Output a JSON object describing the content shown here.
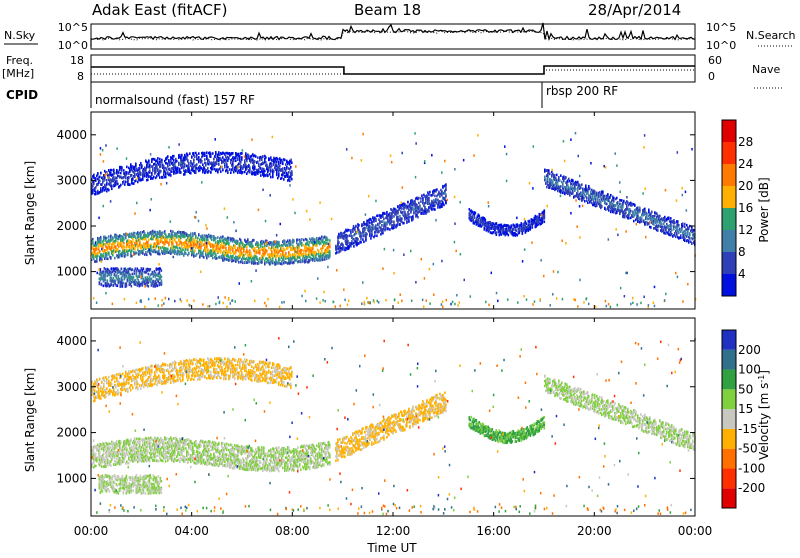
{
  "header": {
    "station": "Adak East (fitACF)",
    "beam": "Beam 18",
    "date": "28/Apr/2014"
  },
  "top_panels": {
    "nsky_label": "N.Sky",
    "nsky_ticks": [
      "10^5",
      "10^0"
    ],
    "nsearch_label": "N.Search",
    "nsearch_ticks": [
      "10^5",
      "10^0"
    ],
    "freq_label_1": "Freq.",
    "freq_label_2": "[MHz]",
    "freq_ticks": [
      "18",
      "8"
    ],
    "nave_label": "Nave",
    "nave_ticks": [
      "60",
      "0"
    ],
    "cpid_label": "CPID",
    "cpid_segments": [
      {
        "label": "normalsound (fast) 157 RF",
        "start_hour": 0
      },
      {
        "label": "rbsp 200 RF",
        "start_hour": 18
      }
    ]
  },
  "x_axis": {
    "label": "Time UT",
    "ticks": [
      "00:00",
      "04:00",
      "08:00",
      "12:00",
      "16:00",
      "20:00",
      "00:00"
    ]
  },
  "colors": {
    "power": [
      "#0010e0",
      "#2f3fb8",
      "#3f7fa8",
      "#2fa070",
      "#ffb000",
      "#ff7a00",
      "#ff3000",
      "#e00000"
    ],
    "velocity": [
      "#2030c0",
      "#30708a",
      "#30a040",
      "#80d040",
      "#c8c8c0",
      "#ffb000",
      "#ff7000",
      "#ff3000",
      "#e00000"
    ]
  },
  "chart_data": [
    {
      "type": "heatmap",
      "ylabel": "Slant Range [km]",
      "xlabel": "Time UT",
      "x_range_hours": [
        0,
        24
      ],
      "ylim": [
        180,
        4500
      ],
      "y_ticks": [
        "1000",
        "2000",
        "3000",
        "4000"
      ],
      "colorbar": {
        "label": "Power [dB]",
        "ticks": [
          "4",
          "8",
          "12",
          "16",
          "20",
          "24",
          "28"
        ],
        "range": [
          0,
          32
        ]
      },
      "echo_bands": [
        {
          "hours": [
            0.0,
            9.5
          ],
          "range_km": [
            1250,
            1800
          ],
          "peak_db": 22
        },
        {
          "hours": [
            9.7,
            14.1
          ],
          "range_km": [
            1400,
            2800
          ],
          "peak_db": 8
        },
        {
          "hours": [
            15.0,
            18.0
          ],
          "range_km": [
            1800,
            2400
          ],
          "peak_db": 6
        },
        {
          "hours": [
            18.0,
            24.0
          ],
          "range_km": [
            1500,
            3100
          ],
          "peak_db": 10
        },
        {
          "hours": [
            0.0,
            8.0
          ],
          "range_km": [
            2700,
            3500
          ],
          "peak_db": 6
        },
        {
          "hours": [
            0.3,
            2.8
          ],
          "range_km": [
            700,
            1100
          ],
          "peak_db": 12
        }
      ]
    },
    {
      "type": "heatmap",
      "ylabel": "Slant Range [km]",
      "xlabel": "Time UT",
      "x_range_hours": [
        0,
        24
      ],
      "ylim": [
        180,
        4500
      ],
      "y_ticks": [
        "1000",
        "2000",
        "3000",
        "4000"
      ],
      "colorbar": {
        "label": "Velocity [m s^-1]",
        "ticks": [
          "200",
          "100",
          "50",
          "15",
          "-15",
          "-50",
          "-100",
          "-200"
        ],
        "range": [
          -250,
          250
        ]
      },
      "echo_bands": [
        {
          "hours": [
            0.0,
            9.5
          ],
          "range_km": [
            1250,
            1800
          ],
          "velocity": 0
        },
        {
          "hours": [
            9.7,
            14.1
          ],
          "range_km": [
            1400,
            2800
          ],
          "velocity": -40
        },
        {
          "hours": [
            15.0,
            18.0
          ],
          "range_km": [
            1800,
            2400
          ],
          "velocity": 40
        },
        {
          "hours": [
            18.0,
            24.0
          ],
          "range_km": [
            1500,
            3100
          ],
          "velocity": 0
        },
        {
          "hours": [
            0.0,
            8.0
          ],
          "range_km": [
            2700,
            3500
          ],
          "velocity": -40
        },
        {
          "hours": [
            0.3,
            2.8
          ],
          "range_km": [
            700,
            1100
          ],
          "velocity": 0
        }
      ]
    }
  ]
}
